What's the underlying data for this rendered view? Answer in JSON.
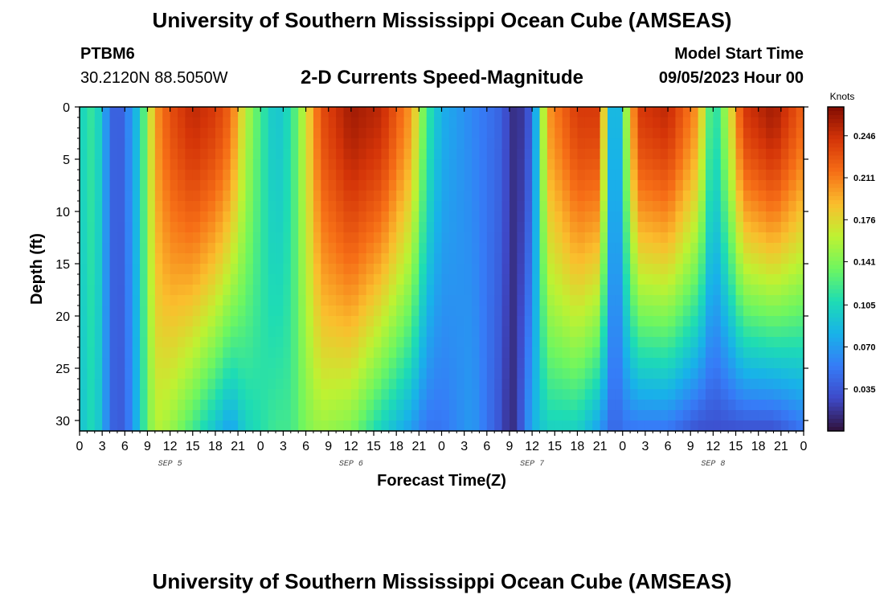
{
  "header": {
    "title": "University of Southern Mississippi Ocean Cube (AMSEAS)",
    "station_id": "PTBM6",
    "station_coords": "30.2120N  88.5050W",
    "subtitle": "2-D Currents Speed-Magnitude",
    "model_start_label": "Model Start Time",
    "model_start_value": "09/05/2023 Hour 00"
  },
  "footer": {
    "title": "University of Southern Mississippi Ocean Cube (AMSEAS)"
  },
  "chart_data": {
    "type": "heatmap",
    "title": "2-D Currents Speed-Magnitude",
    "xlabel": "Forecast Time(Z)",
    "ylabel": "Depth (ft)",
    "xlim": [
      0,
      96
    ],
    "ylim": [
      31,
      0
    ],
    "x_tick_labels": [
      "0",
      "3",
      "6",
      "9",
      "12",
      "15",
      "18",
      "21",
      "0",
      "3",
      "6",
      "9",
      "12",
      "15",
      "18",
      "21",
      "0",
      "3",
      "6",
      "9",
      "12",
      "15",
      "18",
      "21",
      "0",
      "3",
      "6",
      "9",
      "12",
      "15",
      "18",
      "21",
      "0"
    ],
    "y_ticks": [
      0,
      5,
      10,
      15,
      20,
      25,
      30
    ],
    "date_labels": [
      {
        "label": "SEP 5",
        "hour": 12
      },
      {
        "label": "SEP 6",
        "hour": 36
      },
      {
        "label": "SEP 7",
        "hour": 60
      },
      {
        "label": "SEP 8",
        "hour": 84
      }
    ],
    "colorbar": {
      "label": "Knots",
      "min": 0.0,
      "max": 0.27,
      "ticks": [
        "0.246",
        "0.211",
        "0.176",
        "0.141",
        "0.105",
        "0.070",
        "0.035"
      ],
      "tick_values": [
        0.246,
        0.211,
        0.176,
        0.141,
        0.105,
        0.07,
        0.035
      ],
      "colormap": "turbo"
    },
    "depths_ft": [
      0,
      5,
      10,
      15,
      20,
      25,
      30
    ],
    "surface_speed_by_hour": [
      [
        0,
        0.1
      ],
      [
        2,
        0.12
      ],
      [
        4,
        0.05
      ],
      [
        5,
        0.03
      ],
      [
        7,
        0.07
      ],
      [
        8,
        0.1
      ],
      [
        10,
        0.2
      ],
      [
        12,
        0.23
      ],
      [
        15,
        0.25
      ],
      [
        18,
        0.24
      ],
      [
        20,
        0.22
      ],
      [
        22,
        0.16
      ],
      [
        24,
        0.12
      ],
      [
        26,
        0.09
      ],
      [
        28,
        0.11
      ],
      [
        30,
        0.17
      ],
      [
        32,
        0.23
      ],
      [
        36,
        0.26
      ],
      [
        40,
        0.25
      ],
      [
        44,
        0.2
      ],
      [
        46,
        0.12
      ],
      [
        48,
        0.08
      ],
      [
        52,
        0.06
      ],
      [
        56,
        0.04
      ],
      [
        57,
        0.02
      ],
      [
        58,
        0.01
      ],
      [
        60,
        0.04
      ],
      [
        62,
        0.2
      ],
      [
        66,
        0.24
      ],
      [
        69,
        0.24
      ],
      [
        70,
        0.12
      ],
      [
        71,
        0.05
      ],
      [
        72,
        0.12
      ],
      [
        74,
        0.24
      ],
      [
        78,
        0.25
      ],
      [
        82,
        0.2
      ],
      [
        84,
        0.1
      ],
      [
        86,
        0.16
      ],
      [
        88,
        0.24
      ],
      [
        92,
        0.26
      ],
      [
        96,
        0.22
      ]
    ],
    "bottom_speed_by_hour": [
      [
        0,
        0.09
      ],
      [
        2,
        0.11
      ],
      [
        4,
        0.05
      ],
      [
        5,
        0.03
      ],
      [
        7,
        0.06
      ],
      [
        8,
        0.1
      ],
      [
        10,
        0.16
      ],
      [
        12,
        0.15
      ],
      [
        15,
        0.12
      ],
      [
        18,
        0.09
      ],
      [
        20,
        0.07
      ],
      [
        22,
        0.1
      ],
      [
        24,
        0.11
      ],
      [
        26,
        0.12
      ],
      [
        28,
        0.12
      ],
      [
        30,
        0.14
      ],
      [
        32,
        0.15
      ],
      [
        36,
        0.14
      ],
      [
        40,
        0.1
      ],
      [
        44,
        0.07
      ],
      [
        46,
        0.05
      ],
      [
        48,
        0.05
      ],
      [
        52,
        0.07
      ],
      [
        56,
        0.03
      ],
      [
        57,
        0.01
      ],
      [
        58,
        0.02
      ],
      [
        60,
        0.08
      ],
      [
        62,
        0.1
      ],
      [
        66,
        0.1
      ],
      [
        69,
        0.07
      ],
      [
        70,
        0.05
      ],
      [
        71,
        0.04
      ],
      [
        72,
        0.05
      ],
      [
        74,
        0.05
      ],
      [
        78,
        0.05
      ],
      [
        82,
        0.03
      ],
      [
        84,
        0.03
      ],
      [
        86,
        0.03
      ],
      [
        88,
        0.03
      ],
      [
        92,
        0.03
      ],
      [
        96,
        0.05
      ]
    ]
  }
}
